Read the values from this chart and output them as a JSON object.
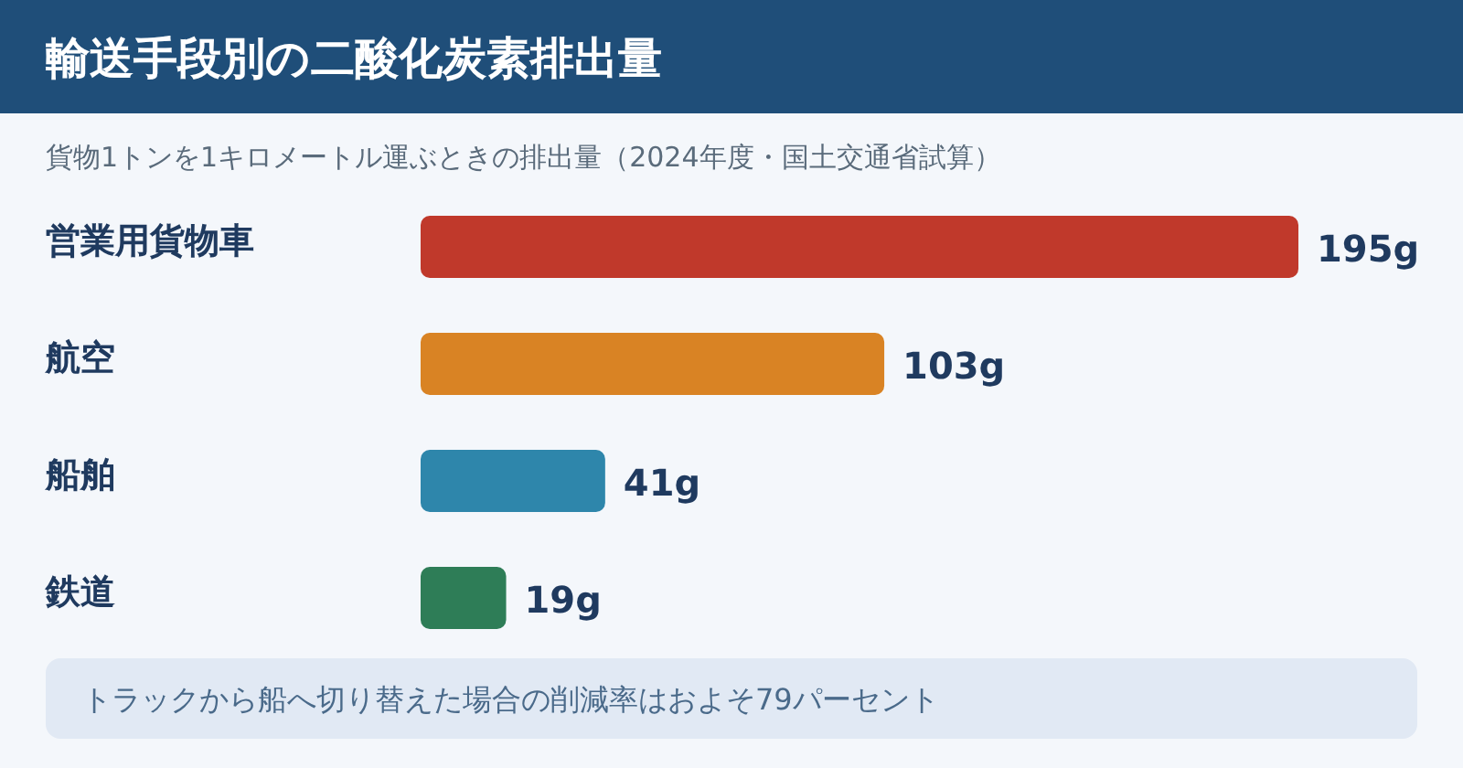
{
  "chart_data": {
    "type": "bar",
    "orientation": "horizontal",
    "title": "輸送手段別の二酸化炭素排出量",
    "subtitle": "貨物1トンを1キロメートル運ぶときの排出量（2024年度・国土交通省試算）",
    "categories": [
      "営業用貨物車",
      "航空",
      "船舶",
      "鉄道"
    ],
    "values": [
      195,
      103,
      41,
      19
    ],
    "colors": [
      "#c0392b",
      "#d98324",
      "#2e86ab",
      "#2e7d57"
    ],
    "value_labels": [
      "195g",
      "103g",
      "41g",
      "19g"
    ],
    "annotations": [
      "トラックから船へ切り替えた場合の削減率はおよそ79パーセント"
    ]
  }
}
